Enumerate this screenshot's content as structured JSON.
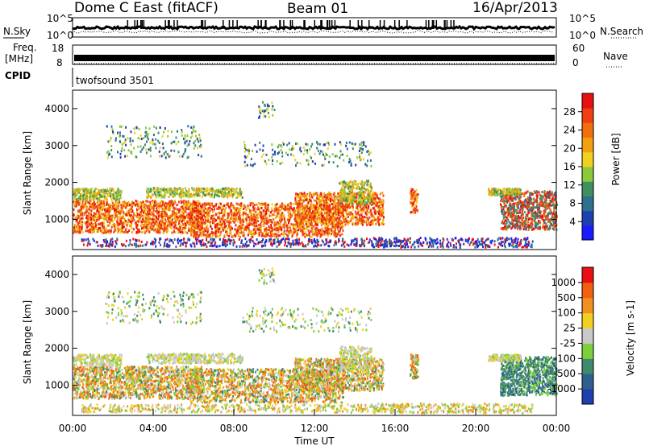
{
  "header": {
    "station": "Dome C East (fitACF)",
    "beam": "Beam 01",
    "date": "16/Apr/2013"
  },
  "status_panels": {
    "nsky_label": "N.Sky",
    "nsearch_label": "N.Search",
    "freq_label_1": "Freq.",
    "freq_label_2": "[MHz]",
    "nave_label": "Nave",
    "cpid_label": "CPID",
    "cpid_value": "twofsound 3501",
    "noise_ticks": [
      "10^5",
      "10^0"
    ],
    "freq_ticks_left": [
      "18",
      "8"
    ],
    "nave_ticks_right": [
      "60",
      "0"
    ]
  },
  "chart_data": [
    {
      "type": "heatmap",
      "panel": "power",
      "ylabel": "Slant Range [km]",
      "xlabel": "",
      "ylim": [
        180,
        4500
      ],
      "yticks": [
        "1000",
        "2000",
        "3000",
        "4000"
      ],
      "colorbar_label": "Power [dB]",
      "colorbar_ticks": [
        "4",
        "8",
        "12",
        "16",
        "20",
        "24",
        "28"
      ],
      "colors": [
        "#1b1bff",
        "#1e3fb0",
        "#2f6f8f",
        "#3f9060",
        "#8cc83a",
        "#f0d020",
        "#f0a010",
        "#f07010",
        "#f04010",
        "#e81010"
      ],
      "grid": false
    },
    {
      "type": "heatmap",
      "panel": "velocity",
      "ylabel": "Slant Range [km]",
      "xlabel": "Time UT",
      "ylim": [
        180,
        4500
      ],
      "yticks": [
        "1000",
        "2000",
        "3000",
        "4000"
      ],
      "xticks": [
        "00:00",
        "04:00",
        "08:00",
        "12:00",
        "16:00",
        "20:00",
        "00:00"
      ],
      "colorbar_label": "Velocity [m s-1]",
      "colorbar_ticks": [
        "1000",
        "500",
        "100",
        "25",
        "-25",
        "-100",
        "-500",
        "-1000"
      ],
      "colors": [
        "#1e3fb0",
        "#2f5f8f",
        "#3f8a6f",
        "#7ccf3a",
        "#c8c8c8",
        "#f0d020",
        "#f09020",
        "#f06010",
        "#e81010"
      ],
      "grid": false
    }
  ]
}
